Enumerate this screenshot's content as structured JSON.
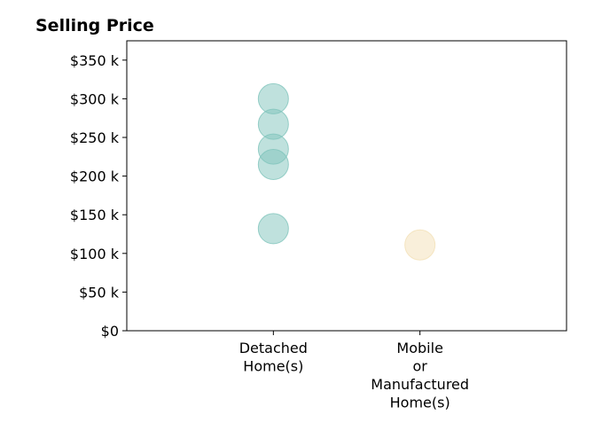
{
  "chart_data": {
    "type": "scatter",
    "title": "Selling Price",
    "xlabel": "",
    "ylabel": "",
    "categories": [
      [
        "Detached",
        "Home(s)"
      ],
      [
        "Mobile",
        "or",
        "Manufactured",
        "Home(s)"
      ]
    ],
    "y_ticks": [
      {
        "value": 0,
        "label": "$0"
      },
      {
        "value": 50000,
        "label": "$50 k"
      },
      {
        "value": 100000,
        "label": "$100 k"
      },
      {
        "value": 150000,
        "label": "$150 k"
      },
      {
        "value": 200000,
        "label": "$200 k"
      },
      {
        "value": 250000,
        "label": "$250 k"
      },
      {
        "value": 300000,
        "label": "$300 k"
      },
      {
        "value": 350000,
        "label": "$350 k"
      }
    ],
    "ylim": [
      0,
      375000
    ],
    "xlim": [
      -1,
      2
    ],
    "grid": false,
    "series": [
      {
        "category_index": 0,
        "color": "#7fc4bb",
        "values": [
          300000,
          267000,
          235000,
          215000,
          132000
        ]
      },
      {
        "category_index": 1,
        "color": "#f3e0b5",
        "values": [
          111000
        ]
      }
    ]
  }
}
